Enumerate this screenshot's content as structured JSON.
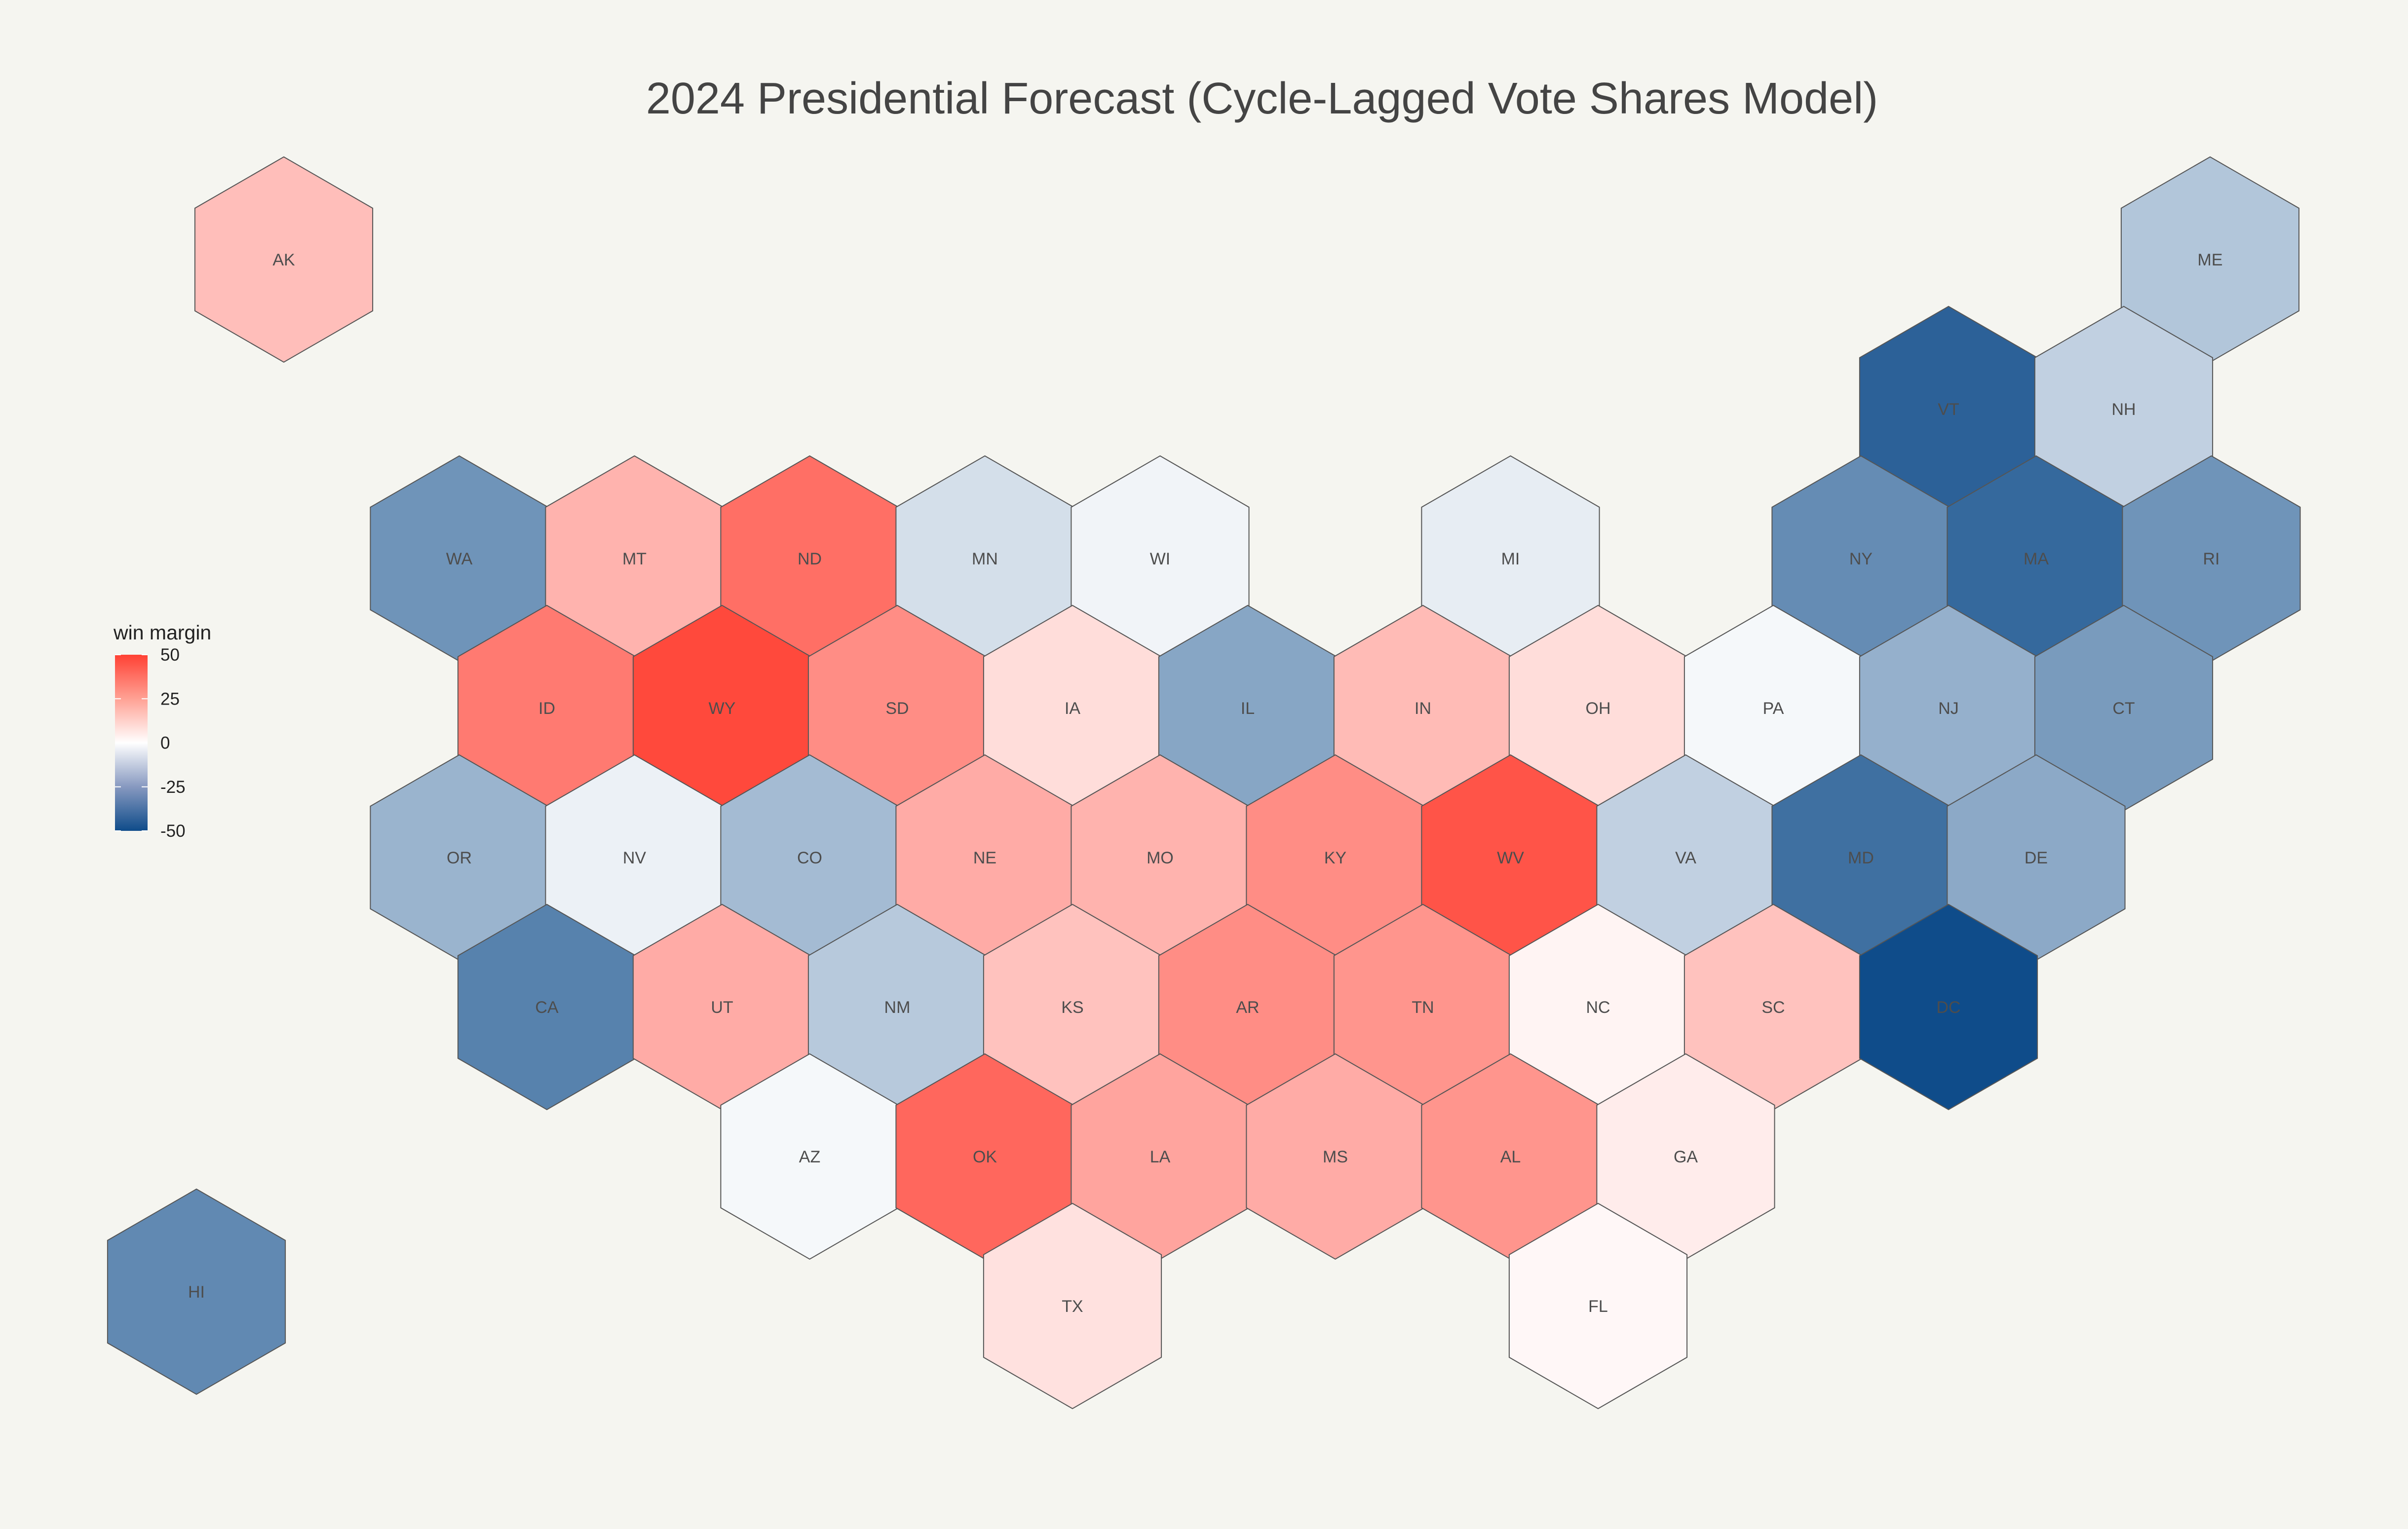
{
  "title": "2024 Presidential Forecast (Cycle-Lagged Vote Shares Model)",
  "legend": {
    "title": "win margin",
    "ticks": [
      "50",
      "25",
      "0",
      "-25",
      "-50"
    ],
    "tick_values": [
      50,
      25,
      0,
      -25,
      -50
    ],
    "range": [
      -50,
      50
    ],
    "colors": {
      "low": "#0f4c8a",
      "mid": "#ffffff",
      "high": "#ff4134"
    }
  },
  "colors": {
    "background": "#f5f5f0",
    "hex_stroke": "#555555"
  },
  "chart_data": {
    "type": "heatmap",
    "subtype": "hex-tile-map",
    "title": "2024 Presidential Forecast (Cycle-Lagged Vote Shares Model)",
    "value_name": "win margin",
    "range": [
      -50,
      50
    ],
    "states": [
      {
        "label": "AK",
        "row": 0,
        "col": 0.5,
        "margin": 17
      },
      {
        "label": "ME",
        "row": 0,
        "col": 11.5,
        "margin": -16
      },
      {
        "label": "VT",
        "row": 1,
        "col": 10,
        "margin": -44
      },
      {
        "label": "NH",
        "row": 1,
        "col": 11,
        "margin": -13
      },
      {
        "label": "WA",
        "row": 2,
        "col": 1.5,
        "margin": -30
      },
      {
        "label": "MT",
        "row": 2,
        "col": 2.5,
        "margin": 20
      },
      {
        "label": "ND",
        "row": 2,
        "col": 3.5,
        "margin": 38
      },
      {
        "label": "MN",
        "row": 2,
        "col": 4.5,
        "margin": -9
      },
      {
        "label": "WI",
        "row": 2,
        "col": 5.5,
        "margin": -3
      },
      {
        "label": "MI",
        "row": 2,
        "col": 7.5,
        "margin": -5
      },
      {
        "label": "NY",
        "row": 2,
        "col": 9.5,
        "margin": -32
      },
      {
        "label": "MA",
        "row": 2,
        "col": 10.5,
        "margin": -42
      },
      {
        "label": "RI",
        "row": 2,
        "col": 11.5,
        "margin": -30
      },
      {
        "label": "ID",
        "row": 3,
        "col": 2,
        "margin": 35
      },
      {
        "label": "WY",
        "row": 3,
        "col": 3,
        "margin": 48
      },
      {
        "label": "SD",
        "row": 3,
        "col": 4,
        "margin": 30
      },
      {
        "label": "IA",
        "row": 3,
        "col": 5,
        "margin": 9
      },
      {
        "label": "IL",
        "row": 3,
        "col": 6,
        "margin": -25
      },
      {
        "label": "IN",
        "row": 3,
        "col": 7,
        "margin": 18
      },
      {
        "label": "OH",
        "row": 3,
        "col": 8,
        "margin": 9
      },
      {
        "label": "PA",
        "row": 3,
        "col": 9,
        "margin": -2
      },
      {
        "label": "NJ",
        "row": 3,
        "col": 10,
        "margin": -22
      },
      {
        "label": "CT",
        "row": 3,
        "col": 11,
        "margin": -28
      },
      {
        "label": "OR",
        "row": 4,
        "col": 1.5,
        "margin": -21
      },
      {
        "label": "NV",
        "row": 4,
        "col": 2.5,
        "margin": -4
      },
      {
        "label": "CO",
        "row": 4,
        "col": 3.5,
        "margin": -19
      },
      {
        "label": "NE",
        "row": 4,
        "col": 4.5,
        "margin": 22
      },
      {
        "label": "MO",
        "row": 4,
        "col": 5.5,
        "margin": 20
      },
      {
        "label": "KY",
        "row": 4,
        "col": 6.5,
        "margin": 30
      },
      {
        "label": "WV",
        "row": 4,
        "col": 7.5,
        "margin": 45
      },
      {
        "label": "VA",
        "row": 4,
        "col": 8.5,
        "margin": -13
      },
      {
        "label": "MD",
        "row": 4,
        "col": 9.5,
        "margin": -40
      },
      {
        "label": "DE",
        "row": 4,
        "col": 10.5,
        "margin": -24
      },
      {
        "label": "CA",
        "row": 5,
        "col": 2,
        "margin": -35
      },
      {
        "label": "UT",
        "row": 5,
        "col": 3,
        "margin": 22
      },
      {
        "label": "NM",
        "row": 5,
        "col": 4,
        "margin": -15
      },
      {
        "label": "KS",
        "row": 5,
        "col": 5,
        "margin": 16
      },
      {
        "label": "AR",
        "row": 5,
        "col": 6,
        "margin": 30
      },
      {
        "label": "TN",
        "row": 5,
        "col": 7,
        "margin": 28
      },
      {
        "label": "NC",
        "row": 5,
        "col": 8,
        "margin": 3
      },
      {
        "label": "SC",
        "row": 5,
        "col": 9,
        "margin": 16
      },
      {
        "label": "DC",
        "row": 5,
        "col": 10,
        "margin": -50
      },
      {
        "label": "AZ",
        "row": 6,
        "col": 3.5,
        "margin": -2
      },
      {
        "label": "OK",
        "row": 6,
        "col": 4.5,
        "margin": 40
      },
      {
        "label": "LA",
        "row": 6,
        "col": 5.5,
        "margin": 24
      },
      {
        "label": "MS",
        "row": 6,
        "col": 6.5,
        "margin": 22
      },
      {
        "label": "AL",
        "row": 6,
        "col": 7.5,
        "margin": 28
      },
      {
        "label": "GA",
        "row": 6,
        "col": 8.5,
        "margin": 5
      },
      {
        "label": "TX",
        "row": 7,
        "col": 5,
        "margin": 8
      },
      {
        "label": "FL",
        "row": 7,
        "col": 8,
        "margin": 2
      },
      {
        "label": "HI",
        "row": 7,
        "col": 0,
        "margin": -33
      }
    ]
  }
}
